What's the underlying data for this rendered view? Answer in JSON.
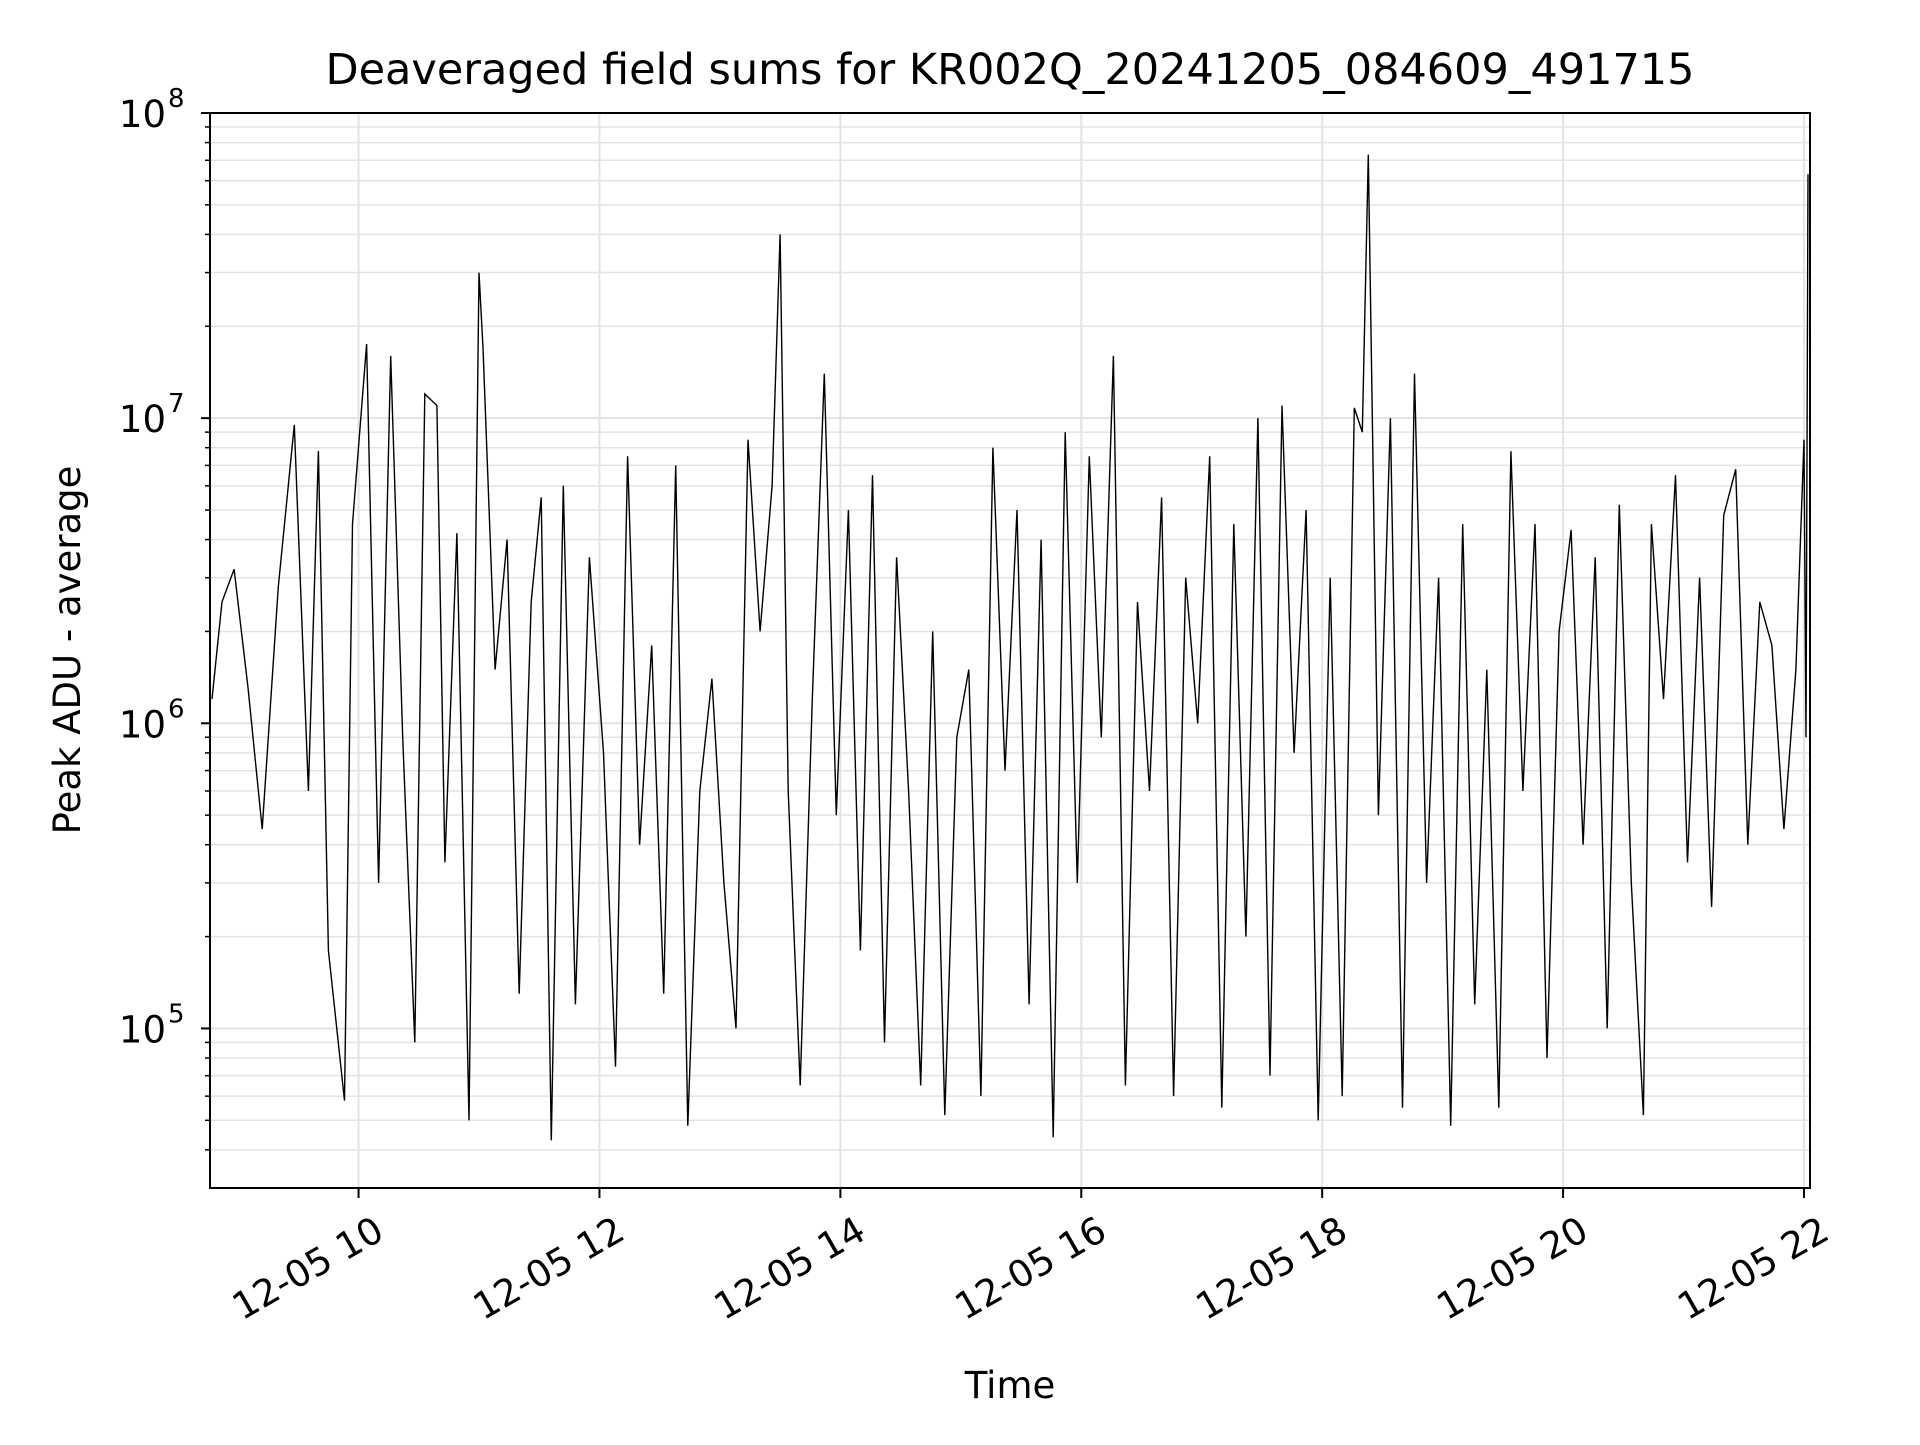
{
  "chart_data": {
    "type": "line",
    "title": "Deaveraged field sums for KR002Q_20241205_084609_491715",
    "xlabel": "Time",
    "ylabel": "Peak ADU - average",
    "yscale": "log",
    "xlim": [
      "2024-12-05 08:46",
      "2024-12-05 22:03"
    ],
    "ylim": [
      30000,
      100000000
    ],
    "grid": true,
    "line_color": "#000000",
    "x_ticks": [
      {
        "value": "2024-12-05 10:00",
        "label": "12-05 10"
      },
      {
        "value": "2024-12-05 12:00",
        "label": "12-05 12"
      },
      {
        "value": "2024-12-05 14:00",
        "label": "12-05 14"
      },
      {
        "value": "2024-12-05 16:00",
        "label": "12-05 16"
      },
      {
        "value": "2024-12-05 18:00",
        "label": "12-05 18"
      },
      {
        "value": "2024-12-05 20:00",
        "label": "12-05 20"
      },
      {
        "value": "2024-12-05 22:00",
        "label": "12-05 22"
      }
    ],
    "y_ticks": [
      {
        "value": 100000,
        "mantissa": "10",
        "exponent": "5"
      },
      {
        "value": 1000000,
        "mantissa": "10",
        "exponent": "6"
      },
      {
        "value": 10000000,
        "mantissa": "10",
        "exponent": "7"
      },
      {
        "value": 100000000,
        "mantissa": "10",
        "exponent": "8"
      }
    ],
    "series": [
      {
        "points": [
          [
            "2024-12-05 08:47",
            1200000
          ],
          [
            "2024-12-05 08:52",
            2500000
          ],
          [
            "2024-12-05 08:58",
            3200000
          ],
          [
            "2024-12-05 09:05",
            1300000
          ],
          [
            "2024-12-05 09:12",
            450000
          ],
          [
            "2024-12-05 09:20",
            2800000
          ],
          [
            "2024-12-05 09:28",
            9500000
          ],
          [
            "2024-12-05 09:35",
            600000
          ],
          [
            "2024-12-05 09:40",
            7800000
          ],
          [
            "2024-12-05 09:45",
            180000
          ],
          [
            "2024-12-05 09:53",
            58000
          ],
          [
            "2024-12-05 09:57",
            4500000
          ],
          [
            "2024-12-05 10:04",
            17500000
          ],
          [
            "2024-12-05 10:10",
            300000
          ],
          [
            "2024-12-05 10:16",
            16000000
          ],
          [
            "2024-12-05 10:22",
            900000
          ],
          [
            "2024-12-05 10:28",
            90000
          ],
          [
            "2024-12-05 10:33",
            12000000
          ],
          [
            "2024-12-05 10:39",
            11000000
          ],
          [
            "2024-12-05 10:43",
            350000
          ],
          [
            "2024-12-05 10:49",
            4200000
          ],
          [
            "2024-12-05 10:55",
            50000
          ],
          [
            "2024-12-05 11:00",
            30000000
          ],
          [
            "2024-12-05 11:02",
            17000000
          ],
          [
            "2024-12-05 11:08",
            1500000
          ],
          [
            "2024-12-05 11:14",
            4000000
          ],
          [
            "2024-12-05 11:20",
            130000
          ],
          [
            "2024-12-05 11:26",
            2500000
          ],
          [
            "2024-12-05 11:31",
            5500000
          ],
          [
            "2024-12-05 11:36",
            43000
          ],
          [
            "2024-12-05 11:42",
            6000000
          ],
          [
            "2024-12-05 11:48",
            120000
          ],
          [
            "2024-12-05 11:55",
            3500000
          ],
          [
            "2024-12-05 12:02",
            800000
          ],
          [
            "2024-12-05 12:08",
            75000
          ],
          [
            "2024-12-05 12:14",
            7500000
          ],
          [
            "2024-12-05 12:20",
            400000
          ],
          [
            "2024-12-05 12:26",
            1800000
          ],
          [
            "2024-12-05 12:32",
            130000
          ],
          [
            "2024-12-05 12:38",
            7000000
          ],
          [
            "2024-12-05 12:44",
            48000
          ],
          [
            "2024-12-05 12:50",
            600000
          ],
          [
            "2024-12-05 12:56",
            1400000
          ],
          [
            "2024-12-05 13:02",
            300000
          ],
          [
            "2024-12-05 13:08",
            100000
          ],
          [
            "2024-12-05 13:14",
            8500000
          ],
          [
            "2024-12-05 13:20",
            2000000
          ],
          [
            "2024-12-05 13:26",
            6000000
          ],
          [
            "2024-12-05 13:30",
            40000000
          ],
          [
            "2024-12-05 13:34",
            600000
          ],
          [
            "2024-12-05 13:40",
            65000
          ],
          [
            "2024-12-05 13:46",
            1200000
          ],
          [
            "2024-12-05 13:52",
            14000000
          ],
          [
            "2024-12-05 13:58",
            500000
          ],
          [
            "2024-12-05 14:04",
            5000000
          ],
          [
            "2024-12-05 14:10",
            180000
          ],
          [
            "2024-12-05 14:16",
            6500000
          ],
          [
            "2024-12-05 14:22",
            90000
          ],
          [
            "2024-12-05 14:28",
            3500000
          ],
          [
            "2024-12-05 14:34",
            600000
          ],
          [
            "2024-12-05 14:40",
            65000
          ],
          [
            "2024-12-05 14:46",
            2000000
          ],
          [
            "2024-12-05 14:52",
            52000
          ],
          [
            "2024-12-05 14:58",
            900000
          ],
          [
            "2024-12-05 15:04",
            1500000
          ],
          [
            "2024-12-05 15:10",
            60000
          ],
          [
            "2024-12-05 15:16",
            8000000
          ],
          [
            "2024-12-05 15:22",
            700000
          ],
          [
            "2024-12-05 15:28",
            5000000
          ],
          [
            "2024-12-05 15:34",
            120000
          ],
          [
            "2024-12-05 15:40",
            4000000
          ],
          [
            "2024-12-05 15:46",
            44000
          ],
          [
            "2024-12-05 15:52",
            9000000
          ],
          [
            "2024-12-05 15:58",
            300000
          ],
          [
            "2024-12-05 16:04",
            7500000
          ],
          [
            "2024-12-05 16:10",
            900000
          ],
          [
            "2024-12-05 16:16",
            16000000
          ],
          [
            "2024-12-05 16:22",
            65000
          ],
          [
            "2024-12-05 16:28",
            2500000
          ],
          [
            "2024-12-05 16:34",
            600000
          ],
          [
            "2024-12-05 16:40",
            5500000
          ],
          [
            "2024-12-05 16:46",
            60000
          ],
          [
            "2024-12-05 16:52",
            3000000
          ],
          [
            "2024-12-05 16:58",
            1000000
          ],
          [
            "2024-12-05 17:04",
            7500000
          ],
          [
            "2024-12-05 17:10",
            55000
          ],
          [
            "2024-12-05 17:16",
            4500000
          ],
          [
            "2024-12-05 17:22",
            200000
          ],
          [
            "2024-12-05 17:28",
            10000000
          ],
          [
            "2024-12-05 17:34",
            70000
          ],
          [
            "2024-12-05 17:40",
            11000000
          ],
          [
            "2024-12-05 17:46",
            800000
          ],
          [
            "2024-12-05 17:52",
            5000000
          ],
          [
            "2024-12-05 17:58",
            50000
          ],
          [
            "2024-12-05 18:04",
            3000000
          ],
          [
            "2024-12-05 18:10",
            60000
          ],
          [
            "2024-12-05 18:16",
            10800000
          ],
          [
            "2024-12-05 18:20",
            9000000
          ],
          [
            "2024-12-05 18:23",
            73000000
          ],
          [
            "2024-12-05 18:28",
            500000
          ],
          [
            "2024-12-05 18:34",
            10000000
          ],
          [
            "2024-12-05 18:40",
            55000
          ],
          [
            "2024-12-05 18:46",
            14000000
          ],
          [
            "2024-12-05 18:52",
            300000
          ],
          [
            "2024-12-05 18:58",
            3000000
          ],
          [
            "2024-12-05 19:04",
            48000
          ],
          [
            "2024-12-05 19:10",
            4500000
          ],
          [
            "2024-12-05 19:16",
            120000
          ],
          [
            "2024-12-05 19:22",
            1500000
          ],
          [
            "2024-12-05 19:28",
            55000
          ],
          [
            "2024-12-05 19:34",
            7800000
          ],
          [
            "2024-12-05 19:40",
            600000
          ],
          [
            "2024-12-05 19:46",
            4500000
          ],
          [
            "2024-12-05 19:52",
            80000
          ],
          [
            "2024-12-05 19:58",
            2000000
          ],
          [
            "2024-12-05 20:04",
            4300000
          ],
          [
            "2024-12-05 20:10",
            400000
          ],
          [
            "2024-12-05 20:16",
            3500000
          ],
          [
            "2024-12-05 20:22",
            100000
          ],
          [
            "2024-12-05 20:28",
            5200000
          ],
          [
            "2024-12-05 20:34",
            300000
          ],
          [
            "2024-12-05 20:40",
            52000
          ],
          [
            "2024-12-05 20:44",
            4500000
          ],
          [
            "2024-12-05 20:50",
            1200000
          ],
          [
            "2024-12-05 20:56",
            6500000
          ],
          [
            "2024-12-05 21:02",
            350000
          ],
          [
            "2024-12-05 21:08",
            3000000
          ],
          [
            "2024-12-05 21:14",
            250000
          ],
          [
            "2024-12-05 21:20",
            4800000
          ],
          [
            "2024-12-05 21:26",
            6800000
          ],
          [
            "2024-12-05 21:32",
            400000
          ],
          [
            "2024-12-05 21:38",
            2500000
          ],
          [
            "2024-12-05 21:44",
            1800000
          ],
          [
            "2024-12-05 21:50",
            450000
          ],
          [
            "2024-12-05 21:56",
            1500000
          ],
          [
            "2024-12-05 22:00",
            8500000
          ],
          [
            "2024-12-05 22:01",
            900000
          ],
          [
            "2024-12-05 22:02",
            63000000
          ]
        ]
      }
    ]
  }
}
